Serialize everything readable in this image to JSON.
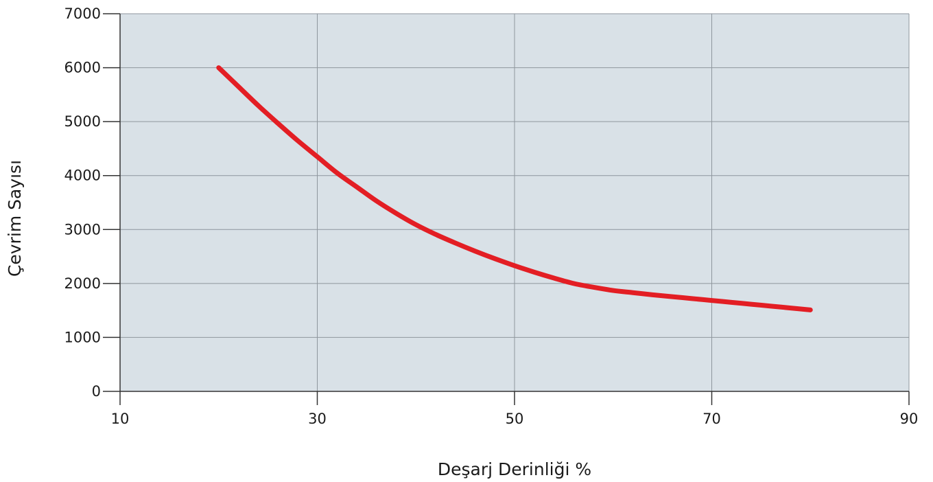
{
  "chart_data": {
    "type": "line",
    "title": "",
    "xlabel": "Deşarj Derinliği %",
    "ylabel": "Çevrim Sayısı",
    "xlim": [
      10,
      90
    ],
    "ylim": [
      0,
      7000
    ],
    "x_ticks": [
      10,
      30,
      50,
      70,
      90
    ],
    "y_ticks": [
      0,
      1000,
      2000,
      3000,
      4000,
      5000,
      6000,
      7000
    ],
    "grid": true,
    "legend": "none",
    "colors": {
      "plot_background": "#d9e1e7",
      "grid": "#8e969d",
      "axis": "#333333",
      "series": "#e31e24"
    },
    "series": [
      {
        "x": [
          20,
          22,
          24,
          26,
          28,
          30,
          32,
          34,
          36,
          38,
          40,
          42,
          44,
          46,
          48,
          50,
          52,
          54,
          56,
          58,
          60,
          62,
          64,
          66,
          68,
          70,
          72,
          74,
          76,
          78,
          80
        ],
        "values": [
          6000,
          5650,
          5300,
          4970,
          4650,
          4350,
          4050,
          3790,
          3530,
          3300,
          3090,
          2910,
          2750,
          2600,
          2460,
          2330,
          2210,
          2100,
          2000,
          1930,
          1870,
          1830,
          1790,
          1755,
          1720,
          1685,
          1650,
          1615,
          1580,
          1545,
          1510
        ]
      }
    ]
  }
}
